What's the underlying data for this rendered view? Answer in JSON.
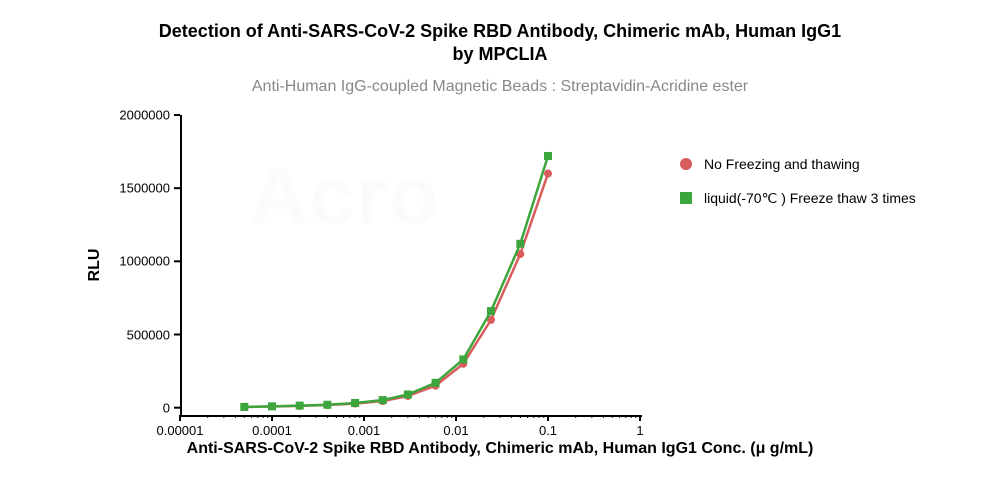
{
  "title_line1": "Detection of Anti-SARS-CoV-2 Spike RBD Antibody, Chimeric mAb, Human IgG1",
  "title_line2": "by MPCLIA",
  "title_fontsize": 18,
  "subtitle": "Anti-Human IgG-coupled Magnetic Beads : Streptavidin-Acridine ester",
  "subtitle_fontsize": 16,
  "subtitle_color": "#888888",
  "background_color": "#ffffff",
  "axis_color": "#000000",
  "chart": {
    "type": "line-scatter",
    "x_scale": "log",
    "y_scale": "linear",
    "xlim": [
      1e-05,
      1
    ],
    "ylim": [
      -50000,
      2000000
    ],
    "y_ticks": [
      0,
      500000,
      1000000,
      1500000,
      2000000
    ],
    "x_ticks": [
      1e-05,
      0.0001,
      0.001,
      0.01,
      0.1,
      1
    ],
    "x_tick_labels": [
      "0.00001",
      "0.0001",
      "0.001",
      "0.01",
      "0.1",
      "1"
    ],
    "minor_ticks": true,
    "y_label": "RLU",
    "x_label": "Anti-SARS-CoV-2 Spike RBD Antibody, Chimeric mAb, Human IgG1 Conc. (μ g/mL)",
    "label_fontsize": 16,
    "tick_fontsize": 13,
    "line_width": 2.5,
    "marker_size": 6,
    "series": [
      {
        "name": "No Freezing and thawing",
        "color": "#d95c5c",
        "marker": "circle",
        "x": [
          5e-05,
          0.0001,
          0.0002,
          0.0004,
          0.0008,
          0.0016,
          0.003,
          0.006,
          0.012,
          0.024,
          0.05,
          0.1
        ],
        "y": [
          5000,
          8000,
          12000,
          18000,
          28000,
          45000,
          80000,
          150000,
          300000,
          600000,
          1050000,
          1600000
        ]
      },
      {
        "name": "liquid(-70℃ ) Freeze thaw 3 times",
        "color": "#3ca63c",
        "marker": "square",
        "x": [
          5e-05,
          0.0001,
          0.0002,
          0.0004,
          0.0008,
          0.0016,
          0.003,
          0.006,
          0.012,
          0.024,
          0.05,
          0.1
        ],
        "y": [
          5000,
          9000,
          14000,
          20000,
          32000,
          52000,
          90000,
          170000,
          330000,
          660000,
          1120000,
          1720000
        ]
      }
    ]
  },
  "legend": {
    "position": "right",
    "items": [
      {
        "label": "No Freezing and thawing",
        "color": "#d95c5c",
        "marker": "circle"
      },
      {
        "label": "liquid(-70℃ ) Freeze thaw 3 times",
        "color": "#3ca63c",
        "marker": "square"
      }
    ]
  },
  "watermark": "Acro"
}
